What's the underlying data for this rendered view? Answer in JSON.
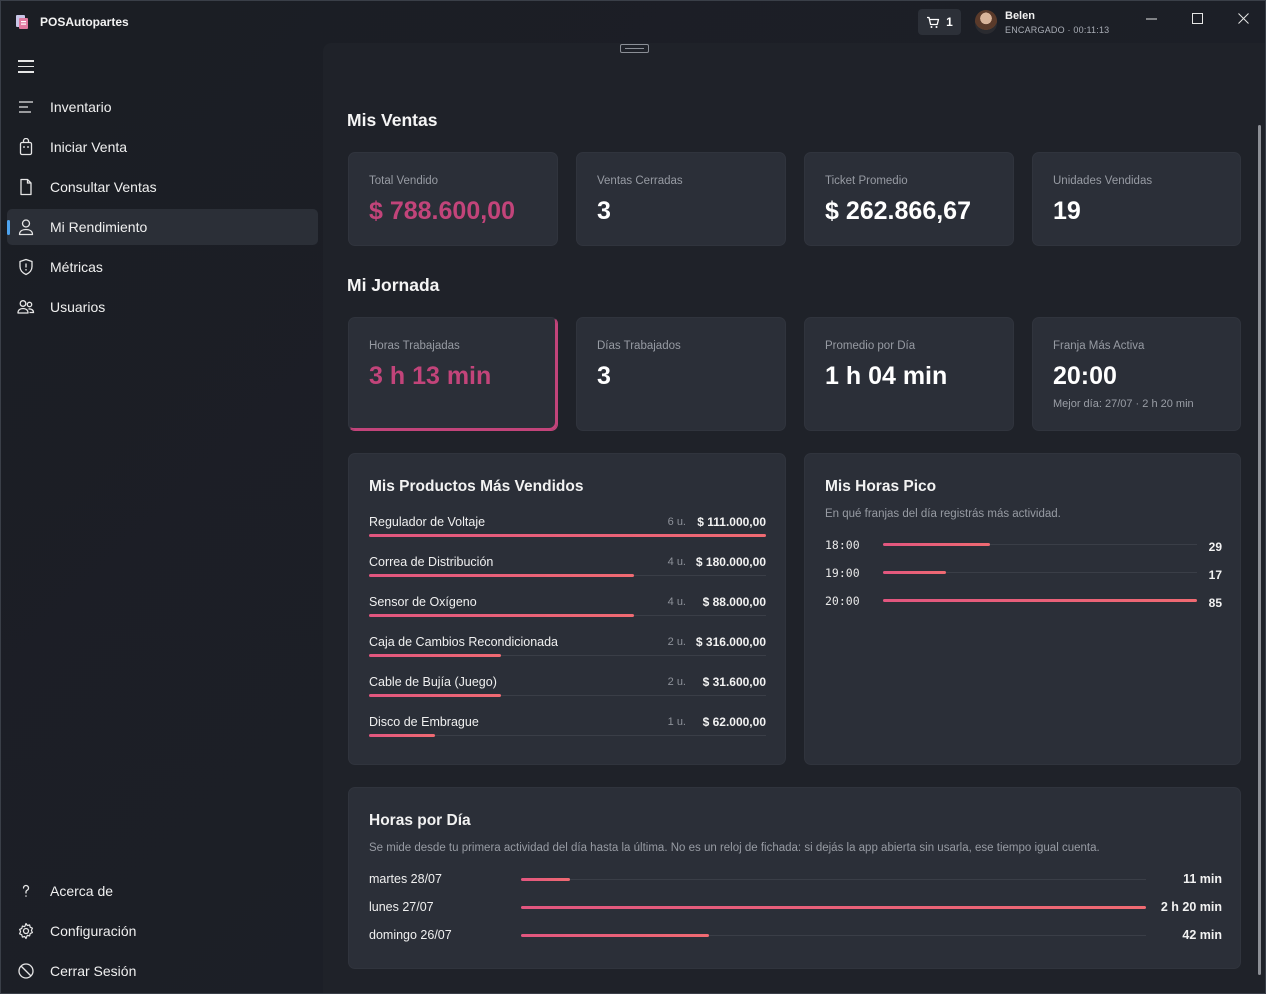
{
  "app": {
    "title": "POSAutopartes",
    "cart_count": "1",
    "user_name": "Belen",
    "user_meta": "ENCARGADO · 00:11:13"
  },
  "sidebar": {
    "items": [
      {
        "label": "Inventario",
        "icon": "list-icon"
      },
      {
        "label": "Iniciar Venta",
        "icon": "bag-icon"
      },
      {
        "label": "Consultar Ventas",
        "icon": "document-icon"
      },
      {
        "label": "Mi Rendimiento",
        "icon": "person-icon",
        "active": true
      },
      {
        "label": "Métricas",
        "icon": "shield-icon"
      },
      {
        "label": "Usuarios",
        "icon": "users-icon"
      }
    ],
    "footer": [
      {
        "label": "Acerca de",
        "icon": "question-icon"
      },
      {
        "label": "Configuración",
        "icon": "gear-icon"
      },
      {
        "label": "Cerrar Sesión",
        "icon": "logout-icon"
      }
    ]
  },
  "ventas": {
    "title": "Mis Ventas",
    "cards": [
      {
        "label": "Total Vendido",
        "value": "$ 788.600,00"
      },
      {
        "label": "Ventas Cerradas",
        "value": "3"
      },
      {
        "label": "Ticket Promedio",
        "value": "$ 262.866,67"
      },
      {
        "label": "Unidades Vendidas",
        "value": "19"
      }
    ]
  },
  "jornada": {
    "title": "Mi Jornada",
    "cards": [
      {
        "label": "Horas Trabajadas",
        "value": "3 h 13 min"
      },
      {
        "label": "Días Trabajados",
        "value": "3"
      },
      {
        "label": "Promedio por Día",
        "value": "1 h 04 min"
      },
      {
        "label": "Franja Más Activa",
        "value": "20:00",
        "sub": "Mejor día: 27/07 · 2 h 20 min"
      }
    ]
  },
  "productos": {
    "title": "Mis Productos Más Vendidos",
    "items": [
      {
        "name": "Regulador de Voltaje",
        "units": "6 u.",
        "amount": "$ 111.000,00",
        "qty": 6
      },
      {
        "name": "Correa de Distribución",
        "units": "4 u.",
        "amount": "$ 180.000,00",
        "qty": 4
      },
      {
        "name": "Sensor de Oxígeno",
        "units": "4 u.",
        "amount": "$ 88.000,00",
        "qty": 4
      },
      {
        "name": "Caja de Cambios Recondicionada",
        "units": "2 u.",
        "amount": "$ 316.000,00",
        "qty": 2
      },
      {
        "name": "Cable de Bujía (Juego)",
        "units": "2 u.",
        "amount": "$ 31.600,00",
        "qty": 2
      },
      {
        "name": "Disco de Embrague",
        "units": "1 u.",
        "amount": "$ 62.000,00",
        "qty": 1
      }
    ]
  },
  "horas_pico": {
    "title": "Mis Horas Pico",
    "description": "En qué franjas del día registrás más actividad.",
    "items": [
      {
        "hour": "18:00",
        "count": "29",
        "value": 29
      },
      {
        "hour": "19:00",
        "count": "17",
        "value": 17
      },
      {
        "hour": "20:00",
        "count": "85",
        "value": 85
      }
    ]
  },
  "horas_dia": {
    "title": "Horas por Día",
    "description": "Se mide desde tu primera actividad del día hasta la última. No es un reloj de fichada: si dejás la app abierta sin usarla, ese tiempo igual cuenta.",
    "items": [
      {
        "day": "martes 28/07",
        "label": "11 min",
        "minutes": 11
      },
      {
        "day": "lunes 27/07",
        "label": "2 h 20 min",
        "minutes": 140
      },
      {
        "day": "domingo 26/07",
        "label": "42 min",
        "minutes": 42
      }
    ]
  },
  "colors": {
    "accent": "#c2447a",
    "bar": "#e8587c",
    "active_indicator": "#4ea4f0"
  }
}
